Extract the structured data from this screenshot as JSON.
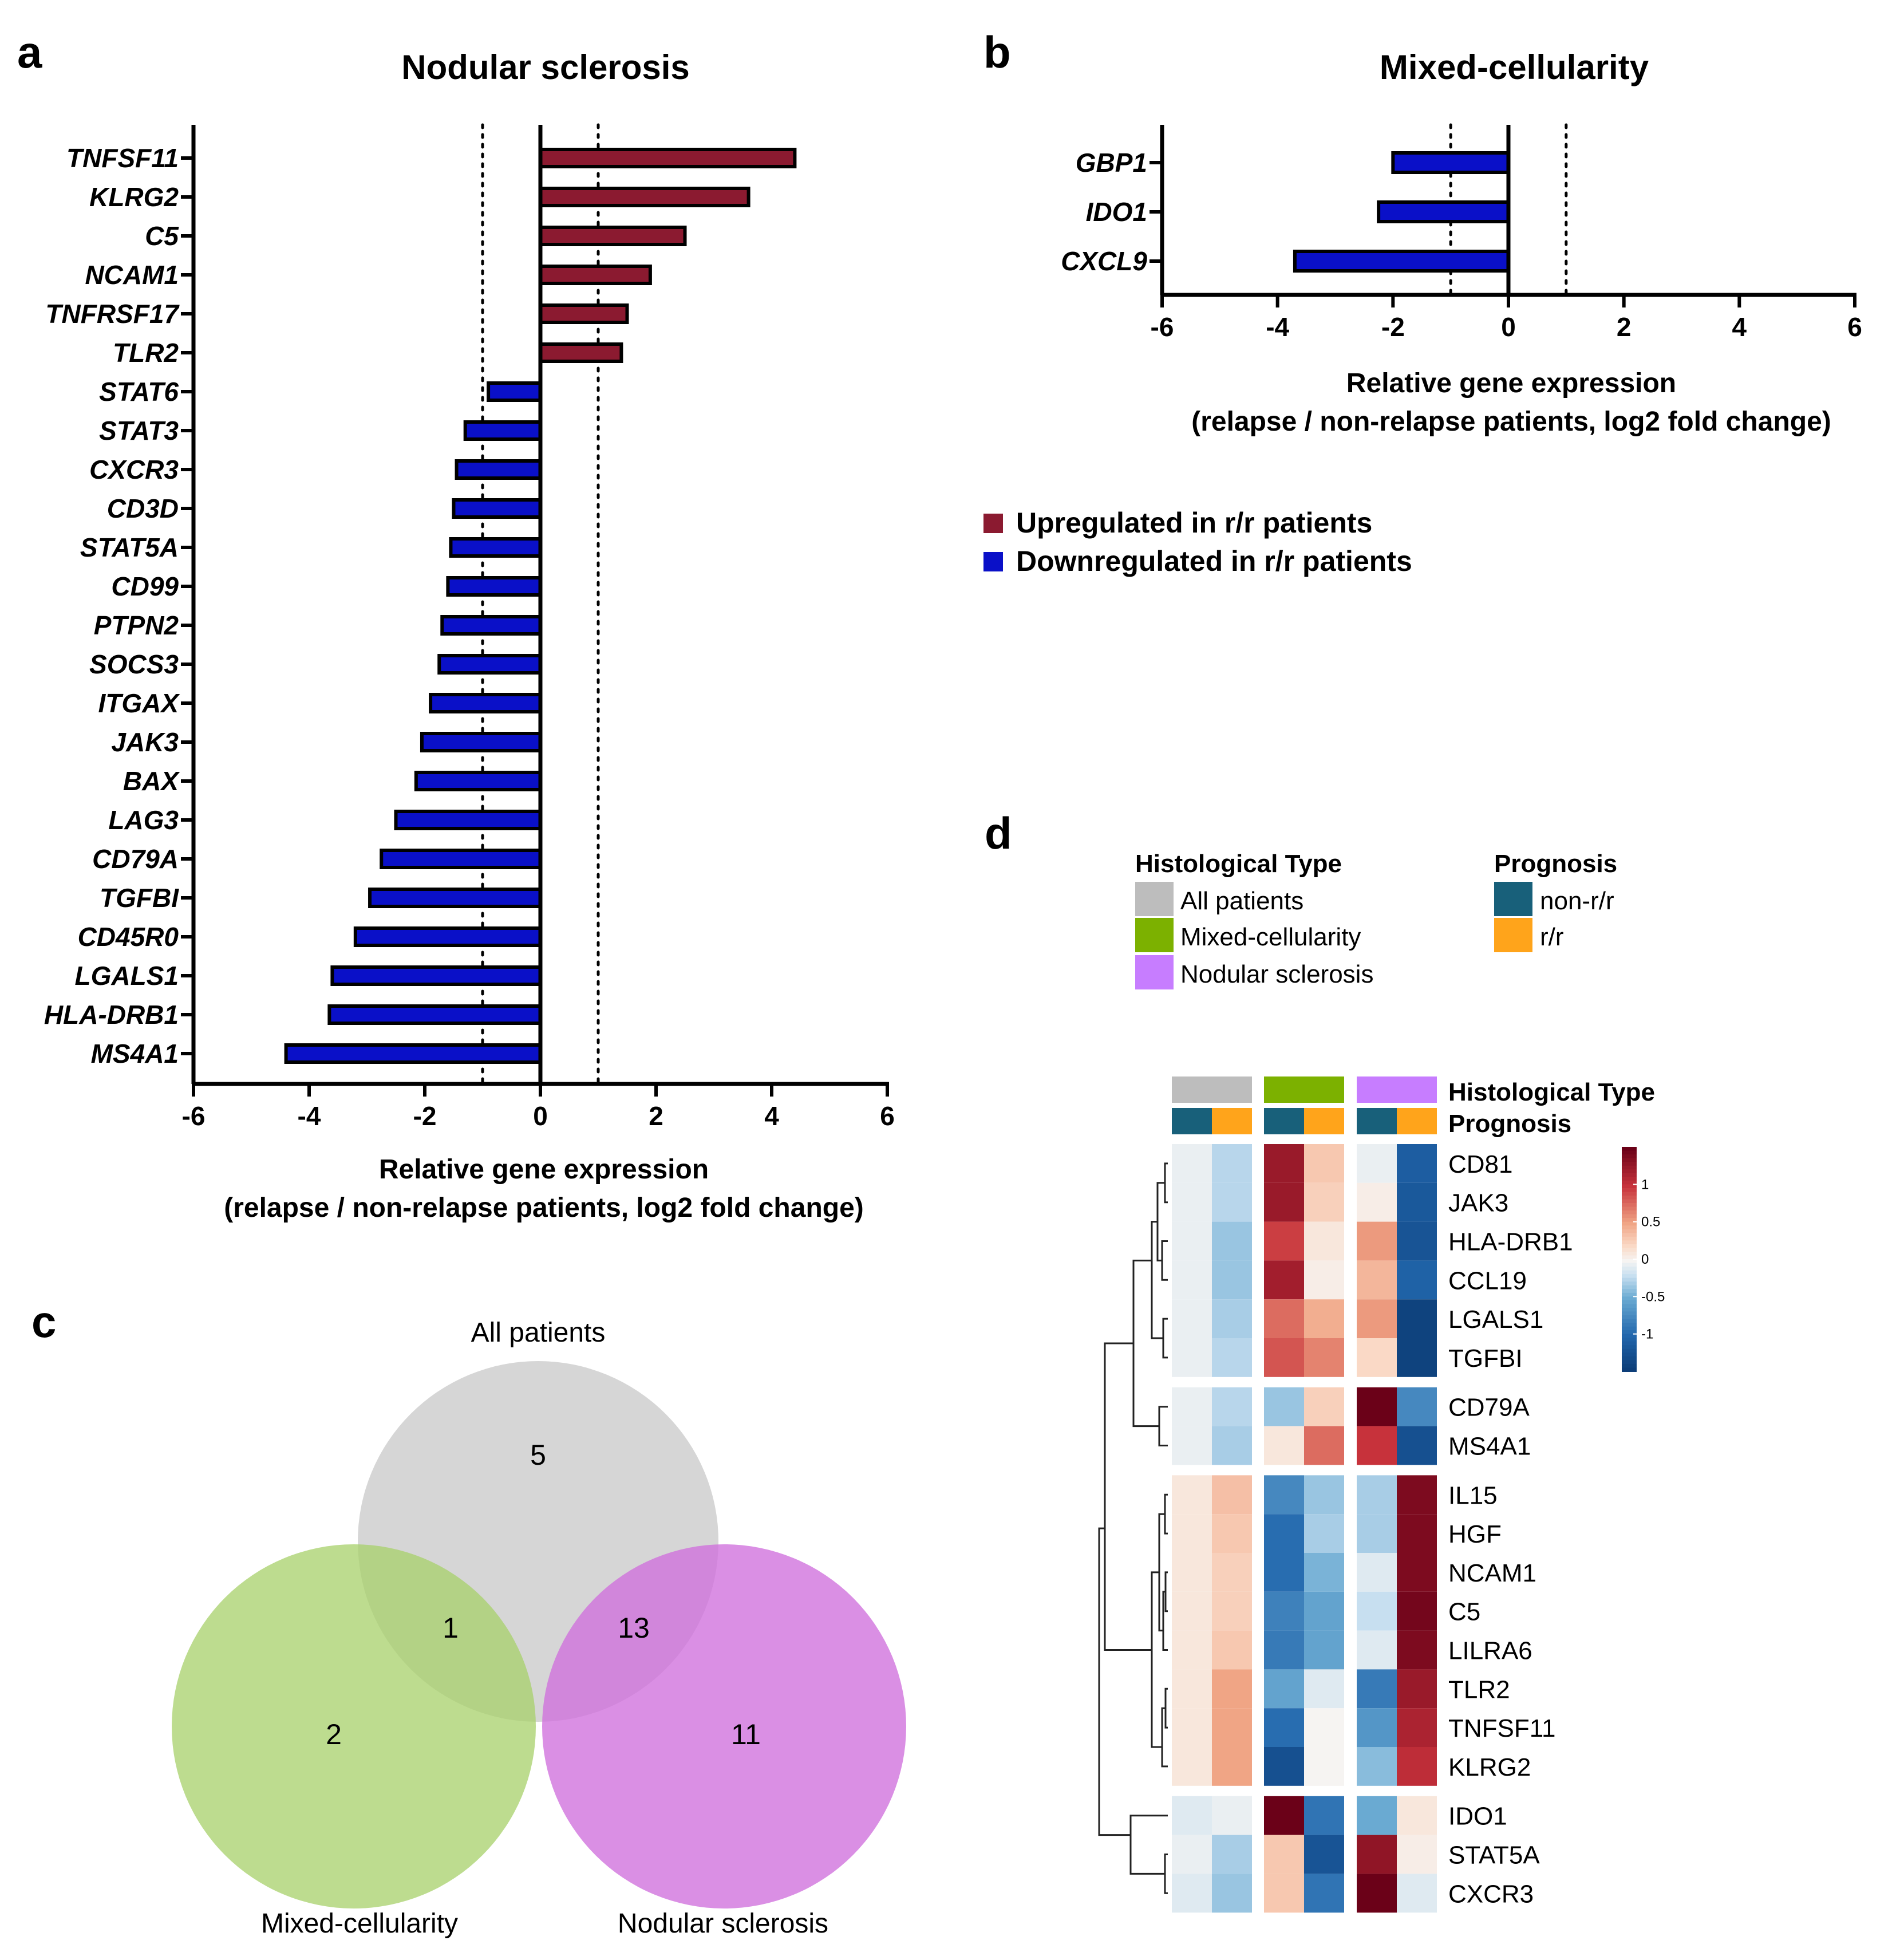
{
  "panel_labels": {
    "a": "a",
    "b": "b",
    "c": "c",
    "d": "d"
  },
  "colors": {
    "up": "#8b1a30",
    "down": "#0a10c8",
    "outline": "#000000",
    "all_patients": "#bdbdbd",
    "mixed": "#7cb100",
    "nodular": "#c77dff",
    "non_rr": "#18607a",
    "rr": "#ffa41b",
    "venn_all": "#d6d6d6",
    "venn_mixed": "#a7d06a",
    "venn_nodular": "#d070dc"
  },
  "legend_ab": {
    "up_label": "Upregulated in r/r patients",
    "down_label": "Downregulated in r/r patients"
  },
  "chart_data": [
    {
      "id": "a",
      "type": "bar",
      "orientation": "horizontal",
      "title": "Nodular sclerosis",
      "xlabel_line1": "Relative gene expression",
      "xlabel_line2": "(relapse / non-relapse patients, log2 fold change)",
      "xlim": [
        -6,
        6
      ],
      "xticks": [
        -6,
        -4,
        -2,
        0,
        2,
        4,
        6
      ],
      "threshold_lines": [
        -1,
        1
      ],
      "categories": [
        "TNFSF11",
        "KLRG2",
        "C5",
        "NCAM1",
        "TNFRSF17",
        "TLR2",
        "STAT6",
        "STAT3",
        "CXCR3",
        "CD3D",
        "STAT5A",
        "CD99",
        "PTPN2",
        "SOCS3",
        "ITGAX",
        "JAK3",
        "BAX",
        "LAG3",
        "CD79A",
        "TGFBI",
        "CD45R0",
        "LGALS1",
        "HLA-DRB1",
        "MS4A1"
      ],
      "values": [
        4.4,
        3.6,
        2.5,
        1.9,
        1.5,
        1.4,
        -0.9,
        -1.3,
        -1.45,
        -1.5,
        -1.55,
        -1.6,
        -1.7,
        -1.75,
        -1.9,
        -2.05,
        -2.15,
        -2.5,
        -2.75,
        -2.95,
        -3.2,
        -3.6,
        -3.65,
        -4.4
      ]
    },
    {
      "id": "b",
      "type": "bar",
      "orientation": "horizontal",
      "title": "Mixed-cellularity",
      "xlabel_line1": "Relative gene expression",
      "xlabel_line2": "(relapse / non-relapse patients, log2 fold change)",
      "xlim": [
        -6,
        6
      ],
      "xticks": [
        -6,
        -4,
        -2,
        0,
        2,
        4,
        6
      ],
      "threshold_lines": [
        -1,
        1
      ],
      "categories": [
        "GBP1",
        "IDO1",
        "CXCL9"
      ],
      "values": [
        -2.0,
        -2.25,
        -3.7
      ]
    },
    {
      "id": "c",
      "type": "venn",
      "sets": [
        "All patients",
        "Mixed-cellularity",
        "Nodular sclerosis"
      ],
      "regions": {
        "all_only": "5",
        "all_and_mixed": "1",
        "all_and_nodular": "13",
        "mixed_only": "2",
        "nodular_only": "11"
      }
    },
    {
      "id": "d",
      "type": "heatmap",
      "annotation_legend": {
        "hist_title": "Histological Type",
        "hist_items": [
          "All patients",
          "Mixed-cellularity",
          "Nodular sclerosis"
        ],
        "prog_title": "Prognosis",
        "prog_items": [
          "non-r/r",
          "r/r"
        ]
      },
      "row_annotation_labels": [
        "Histological Type",
        "Prognosis"
      ],
      "column_groups": [
        "All patients",
        "Mixed-cellularity",
        "Nodular sclerosis"
      ],
      "column_prognosis": [
        "non-r/r",
        "r/r",
        "non-r/r",
        "r/r",
        "non-r/r",
        "r/r"
      ],
      "color_scale": {
        "min": -1.5,
        "max": 1.5,
        "ticks": [
          "1",
          "0.5",
          "0",
          "-0.5",
          "-1"
        ],
        "tick_values": [
          1,
          0.5,
          0,
          -0.5,
          -1
        ]
      },
      "row_gaps_after": [
        5,
        7,
        15
      ],
      "rows": [
        {
          "gene": "CD81",
          "values": [
            -0.05,
            -0.25,
            1.25,
            0.3,
            -0.05,
            -1.1
          ]
        },
        {
          "gene": "JAK3",
          "values": [
            -0.05,
            -0.25,
            1.25,
            0.25,
            0.05,
            -1.15
          ]
        },
        {
          "gene": "HLA-DRB1",
          "values": [
            -0.05,
            -0.35,
            0.95,
            0.1,
            0.55,
            -1.2
          ]
        },
        {
          "gene": "CCL19",
          "values": [
            -0.05,
            -0.35,
            1.2,
            0.05,
            0.4,
            -1.05
          ]
        },
        {
          "gene": "LGALS1",
          "values": [
            -0.05,
            -0.3,
            0.75,
            0.45,
            0.55,
            -1.4
          ]
        },
        {
          "gene": "TGFBI",
          "values": [
            -0.05,
            -0.25,
            0.85,
            0.65,
            0.2,
            -1.4
          ]
        },
        {
          "gene": "CD79A",
          "values": [
            -0.05,
            -0.25,
            -0.35,
            0.25,
            1.5,
            -0.75
          ]
        },
        {
          "gene": "MS4A1",
          "values": [
            -0.05,
            -0.3,
            0.1,
            0.75,
            1.0,
            -1.25
          ]
        },
        {
          "gene": "IL15",
          "values": [
            0.1,
            0.35,
            -0.75,
            -0.35,
            -0.3,
            1.4
          ]
        },
        {
          "gene": "HGF",
          "values": [
            0.1,
            0.3,
            -0.95,
            -0.3,
            -0.3,
            1.4
          ]
        },
        {
          "gene": "NCAM1",
          "values": [
            0.1,
            0.25,
            -0.95,
            -0.45,
            -0.1,
            1.4
          ]
        },
        {
          "gene": "C5",
          "values": [
            0.1,
            0.25,
            -0.8,
            -0.55,
            -0.2,
            1.45
          ]
        },
        {
          "gene": "LILRA6",
          "values": [
            0.1,
            0.3,
            -0.85,
            -0.55,
            -0.1,
            1.4
          ]
        },
        {
          "gene": "TLR2",
          "values": [
            0.1,
            0.5,
            -0.55,
            -0.1,
            -0.85,
            1.25
          ]
        },
        {
          "gene": "TNFSF11",
          "values": [
            0.1,
            0.5,
            -0.95,
            0.0,
            -0.65,
            1.15
          ]
        },
        {
          "gene": "KLRG2",
          "values": [
            0.1,
            0.5,
            -1.25,
            0.0,
            -0.4,
            1.05
          ]
        },
        {
          "gene": "IDO1",
          "values": [
            -0.1,
            -0.05,
            1.55,
            -0.9,
            -0.5,
            0.1
          ]
        },
        {
          "gene": "STAT5A",
          "values": [
            -0.05,
            -0.3,
            0.3,
            -1.2,
            1.3,
            0.05
          ]
        },
        {
          "gene": "CXCR3",
          "values": [
            -0.1,
            -0.35,
            0.3,
            -0.9,
            1.5,
            -0.1
          ]
        }
      ]
    }
  ]
}
